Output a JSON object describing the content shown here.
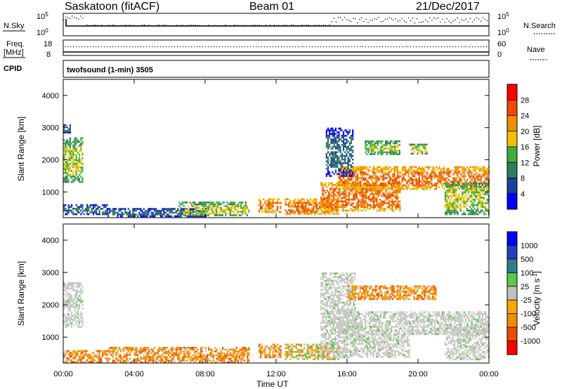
{
  "header": {
    "station": "Saskatoon (fitACF)",
    "beam": "Beam 01",
    "date": "21/Dec/2017"
  },
  "nsky": {
    "label": "N.Sky",
    "ticks": [
      "10^5",
      "10^0"
    ],
    "right_ticks": [
      "10^5",
      "10^0"
    ],
    "search_label": "N.Search"
  },
  "freq": {
    "label_line1": "Freq.",
    "label_line2": "[MHz]",
    "ticks": [
      "18",
      "8"
    ],
    "right_ticks": [
      "60",
      "0"
    ],
    "nave_label": "Nave"
  },
  "cpid": {
    "label": "CPID",
    "program": "twofsound (1-min) 3505"
  },
  "colors": {
    "power": [
      "#0000ff",
      "#1f3f9e",
      "#2e7d5b",
      "#3fae3f",
      "#f2c200",
      "#f28c00",
      "#f04a00",
      "#ff0000"
    ],
    "velocity": [
      "#ff0000",
      "#f04a00",
      "#f28c00",
      "#f7a800",
      "#c0c0c0",
      "#5ac84a",
      "#2e7d8a",
      "#1f3fbe",
      "#0000ff"
    ],
    "grey": "#c8c8c4"
  },
  "chart_data": [
    {
      "type": "heatmap",
      "name": "power",
      "ylabel": "Slant Range [km]",
      "xlabel": "Time UT",
      "x_ticks": [
        "00:00",
        "04:00",
        "08:00",
        "12:00",
        "16:00",
        "20:00",
        "00:00"
      ],
      "y_ticks": [
        "1000",
        "2000",
        "3000",
        "4000"
      ],
      "ylim": [
        200,
        4500
      ],
      "xlim": [
        0,
        24
      ],
      "colorbar": {
        "title": "Power [dB]",
        "ticks": [
          "4",
          "8",
          "12",
          "16",
          "20",
          "24",
          "28"
        ]
      },
      "regions": [
        {
          "t0": 0.0,
          "t1": 1.1,
          "r0": 1300,
          "r1": 2700,
          "level": "mid"
        },
        {
          "t0": 0.0,
          "t1": 0.4,
          "r0": 2850,
          "r1": 3100,
          "level": "low"
        },
        {
          "t0": 0.0,
          "t1": 2.5,
          "r0": 280,
          "r1": 620,
          "level": "low"
        },
        {
          "t0": 2.5,
          "t1": 8.0,
          "r0": 250,
          "r1": 500,
          "level": "low"
        },
        {
          "t0": 6.5,
          "t1": 10.5,
          "r0": 250,
          "r1": 700,
          "level": "mid"
        },
        {
          "t0": 11.0,
          "t1": 12.3,
          "r0": 400,
          "r1": 800,
          "level": "high"
        },
        {
          "t0": 12.5,
          "t1": 15.5,
          "r0": 300,
          "r1": 800,
          "level": "high"
        },
        {
          "t0": 14.5,
          "t1": 19.0,
          "r0": 400,
          "r1": 1300,
          "level": "high"
        },
        {
          "t0": 15.5,
          "t1": 24.0,
          "r0": 1100,
          "r1": 1800,
          "level": "high"
        },
        {
          "t0": 14.8,
          "t1": 16.3,
          "r0": 1500,
          "r1": 3000,
          "level": "low"
        },
        {
          "t0": 17.0,
          "t1": 19.0,
          "r0": 2200,
          "r1": 2600,
          "level": "mid"
        },
        {
          "t0": 19.5,
          "t1": 20.5,
          "r0": 2200,
          "r1": 2500,
          "level": "mid"
        },
        {
          "t0": 21.5,
          "t1": 24.0,
          "r0": 300,
          "r1": 1300,
          "level": "mid"
        }
      ]
    },
    {
      "type": "heatmap",
      "name": "velocity",
      "ylabel": "Slant Range [km]",
      "xlabel": "Time UT",
      "x_ticks": [
        "00:00",
        "04:00",
        "08:00",
        "12:00",
        "16:00",
        "20:00",
        "00:00"
      ],
      "y_ticks": [
        "1000",
        "2000",
        "3000",
        "4000"
      ],
      "ylim": [
        200,
        4500
      ],
      "xlim": [
        0,
        24
      ],
      "colorbar": {
        "title": "Velocity [m s^-1]",
        "ticks": [
          "1000",
          "500",
          "100",
          "25",
          "-25",
          "-100",
          "-500",
          "-1000"
        ]
      },
      "regions": [
        {
          "t0": 0.0,
          "t1": 1.1,
          "r0": 1300,
          "r1": 2700,
          "level": "grey"
        },
        {
          "t0": 0.0,
          "t1": 2.5,
          "r0": 250,
          "r1": 600,
          "level": "neg"
        },
        {
          "t0": 2.5,
          "t1": 10.5,
          "r0": 230,
          "r1": 700,
          "level": "neg"
        },
        {
          "t0": 11.0,
          "t1": 12.3,
          "r0": 400,
          "r1": 800,
          "level": "neg"
        },
        {
          "t0": 12.5,
          "t1": 15.5,
          "r0": 300,
          "r1": 800,
          "level": "mix"
        },
        {
          "t0": 14.5,
          "t1": 16.5,
          "r0": 400,
          "r1": 3000,
          "level": "grey"
        },
        {
          "t0": 15.5,
          "t1": 24.0,
          "r0": 1100,
          "r1": 1800,
          "level": "grey"
        },
        {
          "t0": 16.0,
          "t1": 21.0,
          "r0": 2200,
          "r1": 2600,
          "level": "neg"
        },
        {
          "t0": 16.5,
          "t1": 19.5,
          "r0": 400,
          "r1": 1100,
          "level": "grey"
        },
        {
          "t0": 21.5,
          "t1": 24.0,
          "r0": 300,
          "r1": 1300,
          "level": "grey"
        }
      ]
    }
  ]
}
